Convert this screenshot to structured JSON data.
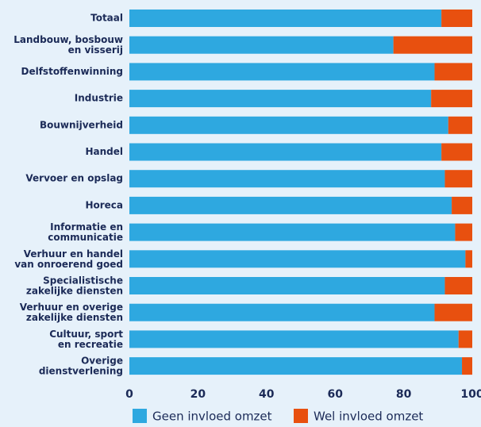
{
  "chart_data": {
    "type": "stacked-barh",
    "categories": [
      "Totaal",
      "Landbouw, bosbouw\nen visserij",
      "Delfstoffenwinning",
      "Industrie",
      "Bouwnijverheid",
      "Handel",
      "Vervoer en opslag",
      "Horeca",
      "Informatie en\ncommunicatie",
      "Verhuur en handel\nvan onroerend goed",
      "Specialistische\nzakelijke diensten",
      "Verhuur en overige\nzakelijke diensten",
      "Cultuur, sport\nen recreatie",
      "Overige\ndienstverlening"
    ],
    "series": [
      {
        "name": "Geen invloed omzet",
        "color": "#2ea8e0",
        "values": [
          91,
          77,
          89,
          88,
          93,
          91,
          92,
          94,
          95,
          98,
          92,
          89,
          96,
          97
        ]
      },
      {
        "name": "Wel invloed omzet",
        "color": "#e8500f",
        "values": [
          9,
          23,
          11,
          12,
          7,
          9,
          8,
          6,
          5,
          2,
          8,
          11,
          4,
          3
        ]
      }
    ],
    "xlim": [
      0,
      100
    ],
    "xticks": [
      0,
      20,
      40,
      60,
      80,
      100
    ],
    "legend": "bottom"
  }
}
